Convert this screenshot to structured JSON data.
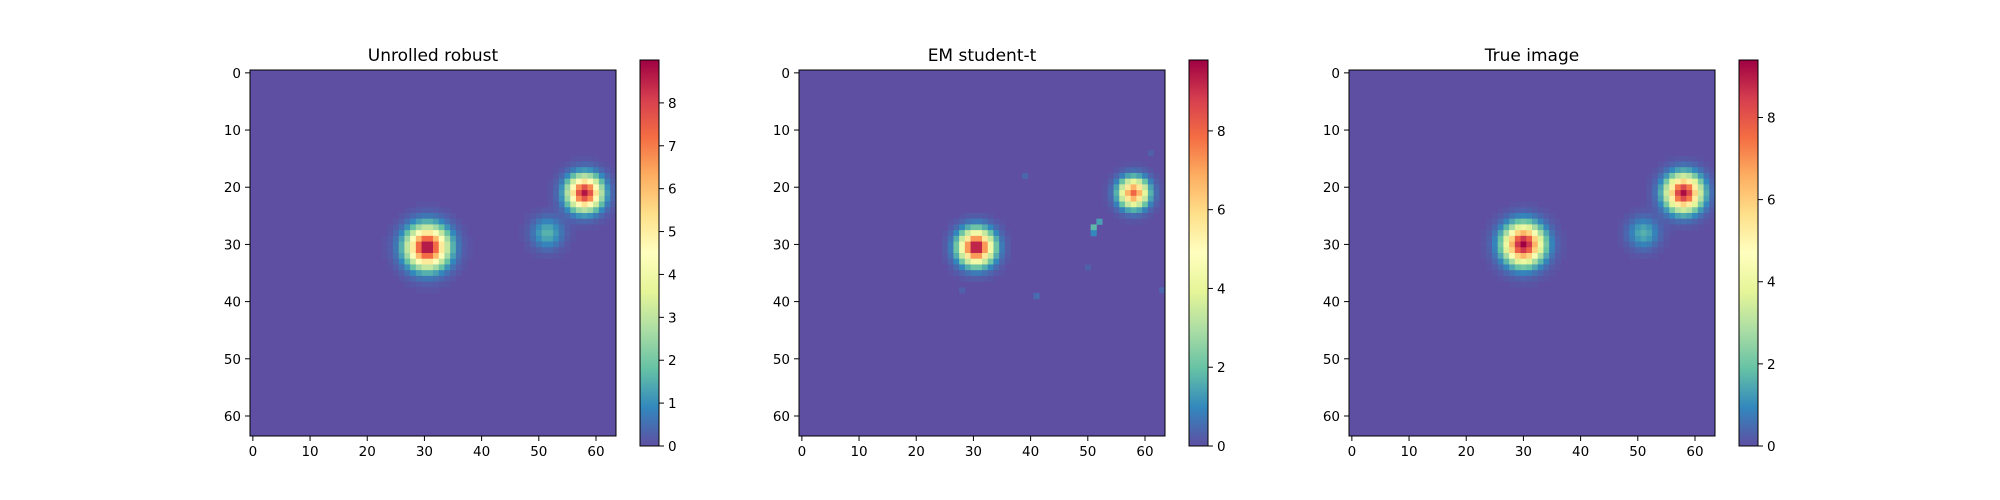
{
  "figure": {
    "background": "#ffffff"
  },
  "colormap": {
    "name": "Spectral_r",
    "stops": [
      "#5e4fa2",
      "#3288bd",
      "#66c2a5",
      "#abdda4",
      "#e6f598",
      "#ffffbf",
      "#fee08b",
      "#fdae61",
      "#f46d43",
      "#d53e4f",
      "#9e0142"
    ]
  },
  "chart_data": [
    {
      "type": "heatmap",
      "title": "Unrolled robust",
      "xlabel": "",
      "ylabel": "",
      "grid": false,
      "rows": 64,
      "cols": 64,
      "xticks": [
        0,
        10,
        20,
        30,
        40,
        50,
        60
      ],
      "yticks": [
        0,
        10,
        20,
        30,
        40,
        50,
        60
      ],
      "vmin": 0,
      "vmax": 9.0,
      "colorbar_ticks": [
        0,
        1,
        2,
        3,
        4,
        5,
        6,
        7,
        8
      ],
      "blobs": [
        {
          "x": 30.5,
          "y": 30.5,
          "peak": 9.0,
          "sigma": 2.4
        },
        {
          "x": 58,
          "y": 21,
          "peak": 8.7,
          "sigma": 2.0
        },
        {
          "x": 51.5,
          "y": 28,
          "peak": 1.6,
          "sigma": 1.8
        }
      ],
      "speckles": []
    },
    {
      "type": "heatmap",
      "title": "EM student-t",
      "xlabel": "",
      "ylabel": "",
      "grid": false,
      "rows": 64,
      "cols": 64,
      "xticks": [
        0,
        10,
        20,
        30,
        40,
        50,
        60
      ],
      "yticks": [
        0,
        10,
        20,
        30,
        40,
        50,
        60
      ],
      "vmin": 0,
      "vmax": 9.8,
      "colorbar_ticks": [
        0,
        2,
        4,
        6,
        8
      ],
      "blobs": [
        {
          "x": 30.5,
          "y": 30.5,
          "peak": 9.8,
          "sigma": 2.0
        },
        {
          "x": 58,
          "y": 21,
          "peak": 8.0,
          "sigma": 1.7
        }
      ],
      "speckles": [
        {
          "x": 51,
          "y": 27,
          "value": 1.8
        },
        {
          "x": 52,
          "y": 26,
          "value": 1.4
        },
        {
          "x": 51,
          "y": 28,
          "value": 1.0
        },
        {
          "x": 39,
          "y": 18,
          "value": 0.4
        },
        {
          "x": 41,
          "y": 39,
          "value": 0.5
        },
        {
          "x": 28,
          "y": 38,
          "value": 0.3
        },
        {
          "x": 50,
          "y": 34,
          "value": 0.3
        },
        {
          "x": 63,
          "y": 38,
          "value": 0.4
        },
        {
          "x": 61,
          "y": 14,
          "value": 0.3
        }
      ]
    },
    {
      "type": "heatmap",
      "title": "True image",
      "xlabel": "",
      "ylabel": "",
      "grid": false,
      "rows": 64,
      "cols": 64,
      "xticks": [
        0,
        10,
        20,
        30,
        40,
        50,
        60
      ],
      "yticks": [
        0,
        10,
        20,
        30,
        40,
        50,
        60
      ],
      "vmin": 0,
      "vmax": 9.4,
      "colorbar_ticks": [
        0,
        2,
        4,
        6,
        8
      ],
      "blobs": [
        {
          "x": 30,
          "y": 30,
          "peak": 9.4,
          "sigma": 2.3
        },
        {
          "x": 58,
          "y": 21,
          "peak": 9.2,
          "sigma": 2.1
        },
        {
          "x": 51,
          "y": 28,
          "peak": 1.6,
          "sigma": 1.8
        }
      ],
      "speckles": []
    }
  ]
}
